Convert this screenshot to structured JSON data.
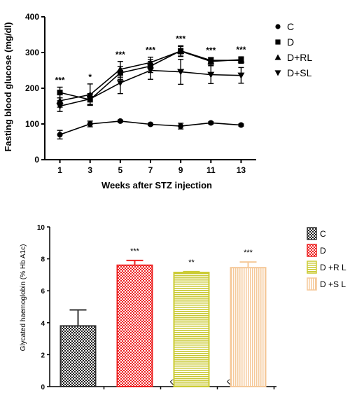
{
  "chart_data": [
    {
      "type": "line",
      "xlabel": "Weeks after STZ injection",
      "ylabel": "Fasting blood glucose (mg/dl)",
      "x": [
        1,
        3,
        5,
        7,
        9,
        11,
        13
      ],
      "xlim": [
        0,
        14
      ],
      "ylim": [
        0,
        400
      ],
      "yticks": [
        0,
        100,
        200,
        300,
        400
      ],
      "grid": false,
      "legend_position": "right",
      "series": [
        {
          "name": "C",
          "marker": "circle",
          "values": [
            70,
            100,
            108,
            99,
            94,
            103,
            97
          ],
          "errors": [
            12,
            8,
            3,
            3,
            8,
            3,
            3
          ]
        },
        {
          "name": "D",
          "marker": "square",
          "values": [
            188,
            168,
            243,
            262,
            305,
            278,
            278
          ],
          "errors": [
            15,
            15,
            18,
            18,
            12,
            8,
            8
          ]
        },
        {
          "name": "D+RL",
          "marker": "triangle-up",
          "values": [
            165,
            182,
            253,
            272,
            304,
            275,
            280
          ],
          "errors": [
            18,
            30,
            22,
            15,
            15,
            10,
            8
          ]
        },
        {
          "name": "D+SL",
          "marker": "triangle-down",
          "values": [
            150,
            170,
            215,
            250,
            246,
            238,
            236
          ],
          "errors": [
            15,
            15,
            30,
            25,
            35,
            25,
            22
          ]
        }
      ],
      "significance": [
        "***",
        "*",
        "***",
        "***",
        "***",
        "***",
        "***"
      ]
    },
    {
      "type": "bar",
      "ylabel": "Glycated haemoglobin (% Hb A1c)",
      "categories": [
        "C",
        "D",
        "D +RL",
        "D +SL"
      ],
      "values": [
        3.8,
        7.6,
        7.15,
        7.45
      ],
      "errors": [
        1.0,
        0.3,
        0.05,
        0.35
      ],
      "ylim": [
        0,
        10
      ],
      "yticks": [
        0,
        2,
        4,
        6,
        8,
        10
      ],
      "significance": [
        "",
        "***",
        "**",
        "***"
      ],
      "legend": [
        "C",
        "D",
        "D +R L",
        "D +S L"
      ],
      "legend_position": "right",
      "colors": [
        "#333333",
        "#ee2222",
        "#cccc33",
        "#f5c99a"
      ],
      "fills": [
        "checker",
        "checker",
        "hlines",
        "vlines"
      ]
    }
  ]
}
